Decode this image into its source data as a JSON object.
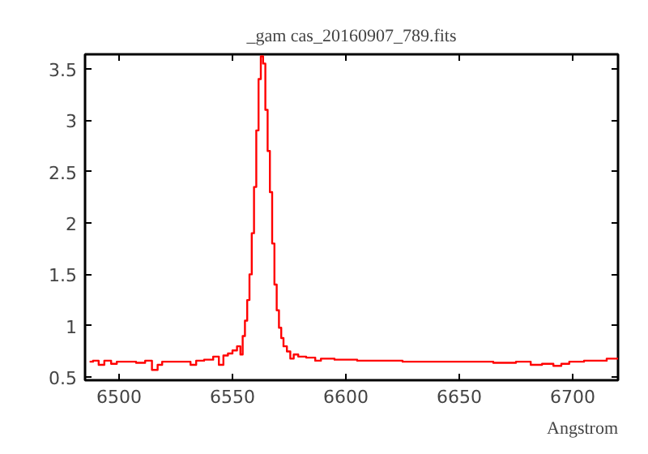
{
  "chart_data": {
    "type": "step",
    "title": "_gam cas_20160907_789.fits",
    "xlabel": "Angstrom",
    "x": [
      6487,
      6490,
      6492,
      6495,
      6498,
      6500,
      6505,
      6510,
      6513,
      6516,
      6518,
      6520,
      6525,
      6530,
      6533,
      6535,
      6540,
      6543,
      6545,
      6547,
      6549,
      6551,
      6553,
      6554,
      6555,
      6556,
      6557,
      6558,
      6559,
      6560,
      6561,
      6562,
      6563,
      6564,
      6565,
      6566,
      6567,
      6568,
      6569,
      6570,
      6571,
      6572,
      6573,
      6575,
      6576,
      6578,
      6580,
      6585,
      6588,
      6590,
      6600,
      6610,
      6620,
      6630,
      6640,
      6650,
      6660,
      6670,
      6680,
      6683,
      6690,
      6693,
      6697,
      6700,
      6710,
      6720
    ],
    "values": [
      0.65,
      0.66,
      0.62,
      0.66,
      0.63,
      0.65,
      0.65,
      0.64,
      0.66,
      0.57,
      0.62,
      0.65,
      0.65,
      0.65,
      0.62,
      0.66,
      0.67,
      0.7,
      0.62,
      0.71,
      0.73,
      0.76,
      0.8,
      0.72,
      0.9,
      1.05,
      1.25,
      1.5,
      1.9,
      2.35,
      2.9,
      3.4,
      3.62,
      3.55,
      3.1,
      2.7,
      2.3,
      1.8,
      1.4,
      1.15,
      0.98,
      0.88,
      0.8,
      0.75,
      0.68,
      0.72,
      0.7,
      0.69,
      0.66,
      0.68,
      0.67,
      0.66,
      0.66,
      0.65,
      0.65,
      0.65,
      0.65,
      0.64,
      0.65,
      0.62,
      0.63,
      0.61,
      0.63,
      0.65,
      0.66,
      0.68
    ],
    "color": "#ff0000",
    "xlim": [
      6485,
      6720
    ],
    "ylim": [
      0.47,
      3.64
    ],
    "xticks": [
      6500,
      6550,
      6600,
      6650,
      6700
    ],
    "yticks": [
      0.5,
      1,
      1.5,
      2,
      2.5,
      3,
      3.5
    ],
    "grid": false
  }
}
